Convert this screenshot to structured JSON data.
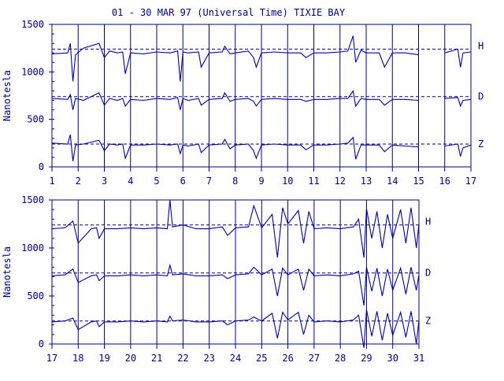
{
  "chart_data": [
    {
      "type": "line",
      "title": "01 - 30 MAR 97 (Universal Time) TIXIE BAY",
      "ylabel": "Nanotesla",
      "xlim": [
        1,
        17
      ],
      "ylim": [
        0,
        1500
      ],
      "ytick_labels": [
        "0",
        "500",
        "1000",
        "1500"
      ],
      "xtick_labels": [
        "1",
        "2",
        "3",
        "4",
        "5",
        "6",
        "7",
        "8",
        "9",
        "10",
        "11",
        "12",
        "13",
        "14",
        "15",
        "16",
        "17"
      ],
      "gap": [
        15,
        16
      ],
      "series": [
        {
          "name": "H",
          "baseline": 1240,
          "level": 1200,
          "x": [
            1.0,
            1.6,
            1.7,
            1.8,
            1.9,
            2.2,
            2.8,
            3.0,
            3.2,
            3.5,
            3.7,
            3.8,
            4.0,
            4.5,
            5.0,
            5.5,
            5.8,
            5.9,
            6.0,
            6.2,
            6.6,
            6.7,
            7.0,
            7.5,
            7.6,
            7.8,
            8.0,
            8.5,
            8.7,
            8.8,
            9.0,
            9.5,
            10.0,
            10.5,
            10.7,
            11.0,
            11.5,
            12.0,
            12.3,
            12.5,
            12.6,
            12.8,
            13.0,
            13.5,
            13.7,
            14.0,
            14.5,
            15.0,
            16.0,
            16.5,
            16.6,
            16.7,
            17.0
          ],
          "y": [
            1190,
            1200,
            1300,
            900,
            1180,
            1250,
            1300,
            1150,
            1220,
            1200,
            1210,
            980,
            1200,
            1190,
            1210,
            1200,
            1220,
            900,
            1210,
            1200,
            1210,
            1050,
            1200,
            1210,
            1270,
            1190,
            1200,
            1220,
            1150,
            1050,
            1200,
            1210,
            1200,
            1200,
            1150,
            1200,
            1200,
            1210,
            1220,
            1380,
            1100,
            1230,
            1200,
            1200,
            1050,
            1200,
            1200,
            1180,
            1200,
            1240,
            1050,
            1200,
            1210
          ]
        },
        {
          "name": "D",
          "baseline": 740,
          "level": 710,
          "x": [
            1.0,
            1.6,
            1.7,
            1.8,
            1.9,
            2.2,
            2.8,
            3.0,
            3.2,
            3.5,
            3.7,
            3.8,
            4.0,
            4.5,
            5.0,
            5.5,
            5.8,
            5.9,
            6.0,
            6.2,
            6.6,
            6.7,
            7.0,
            7.5,
            7.6,
            7.8,
            8.0,
            8.5,
            8.7,
            8.8,
            9.0,
            9.5,
            10.0,
            10.5,
            10.7,
            11.0,
            11.5,
            12.0,
            12.3,
            12.5,
            12.6,
            12.8,
            13.0,
            13.5,
            13.7,
            14.0,
            14.5,
            15.0,
            16.0,
            16.5,
            16.6,
            16.7,
            17.0
          ],
          "y": [
            720,
            710,
            760,
            600,
            720,
            700,
            780,
            650,
            720,
            700,
            720,
            640,
            710,
            700,
            720,
            710,
            730,
            600,
            720,
            700,
            720,
            650,
            710,
            720,
            780,
            690,
            710,
            720,
            690,
            640,
            710,
            720,
            710,
            710,
            690,
            710,
            710,
            720,
            720,
            800,
            640,
            720,
            710,
            710,
            650,
            710,
            710,
            700,
            720,
            730,
            640,
            700,
            710
          ]
        },
        {
          "name": "Z",
          "baseline": 240,
          "level": 230,
          "x": [
            1.0,
            1.6,
            1.7,
            1.8,
            1.9,
            2.2,
            2.8,
            3.0,
            3.2,
            3.5,
            3.7,
            3.8,
            4.0,
            4.5,
            5.0,
            5.5,
            5.8,
            5.9,
            6.0,
            6.2,
            6.6,
            6.7,
            7.0,
            7.5,
            7.6,
            7.8,
            8.0,
            8.5,
            8.7,
            8.8,
            9.0,
            9.5,
            10.0,
            10.5,
            10.7,
            11.0,
            11.5,
            12.0,
            12.3,
            12.5,
            12.6,
            12.8,
            13.0,
            13.5,
            13.7,
            14.0,
            14.5,
            15.0,
            16.0,
            16.5,
            16.6,
            16.7,
            17.0
          ],
          "y": [
            250,
            240,
            340,
            60,
            230,
            240,
            280,
            170,
            240,
            230,
            240,
            90,
            230,
            230,
            240,
            230,
            240,
            140,
            230,
            220,
            240,
            150,
            230,
            240,
            290,
            190,
            230,
            240,
            170,
            90,
            230,
            240,
            230,
            230,
            180,
            230,
            230,
            240,
            250,
            310,
            80,
            230,
            230,
            230,
            160,
            230,
            220,
            210,
            220,
            240,
            110,
            200,
            230
          ]
        }
      ],
      "channel_labels": [
        "H",
        "D",
        "Z"
      ]
    },
    {
      "type": "line",
      "ylabel": "Nanotesla",
      "xlim": [
        17,
        31
      ],
      "ylim": [
        0,
        1500
      ],
      "ytick_labels": [
        "0",
        "500",
        "1000",
        "1500"
      ],
      "xtick_labels": [
        "17",
        "18",
        "19",
        "20",
        "21",
        "22",
        "23",
        "24",
        "25",
        "26",
        "27",
        "28",
        "29",
        "30",
        "31"
      ],
      "series": [
        {
          "name": "H",
          "baseline": 1240,
          "level": 1200,
          "x": [
            17.0,
            17.5,
            17.8,
            18.0,
            18.5,
            18.7,
            18.8,
            19.0,
            19.5,
            20.0,
            20.5,
            21.0,
            21.4,
            21.5,
            21.6,
            22.0,
            22.5,
            23.0,
            23.5,
            23.7,
            24.0,
            24.5,
            24.7,
            25.0,
            25.4,
            25.6,
            25.8,
            26.0,
            26.4,
            26.6,
            26.8,
            27.0,
            27.5,
            28.0,
            28.5,
            28.7,
            28.9,
            29.0,
            29.2,
            29.4,
            29.6,
            29.8,
            30.0,
            30.3,
            30.5,
            30.7,
            30.9,
            31.0
          ],
          "y": [
            1200,
            1210,
            1280,
            1050,
            1200,
            1210,
            1100,
            1200,
            1200,
            1210,
            1200,
            1210,
            1200,
            1500,
            1220,
            1240,
            1200,
            1200,
            1220,
            1130,
            1210,
            1220,
            1440,
            1210,
            1350,
            900,
            1420,
            1250,
            1390,
            1050,
            1380,
            1200,
            1210,
            1200,
            1220,
            1300,
            900,
            1410,
            1100,
            1380,
            1000,
            1350,
            1100,
            1400,
            1050,
            1420,
            1000,
            1250
          ]
        },
        {
          "name": "D",
          "baseline": 740,
          "level": 710,
          "x": [
            17.0,
            17.5,
            17.8,
            18.0,
            18.5,
            18.7,
            18.8,
            19.0,
            19.5,
            20.0,
            20.5,
            21.0,
            21.4,
            21.5,
            21.6,
            22.0,
            22.5,
            23.0,
            23.5,
            23.7,
            24.0,
            24.5,
            24.7,
            25.0,
            25.4,
            25.6,
            25.8,
            26.0,
            26.4,
            26.6,
            26.8,
            27.0,
            27.5,
            28.0,
            28.5,
            28.7,
            28.9,
            29.0,
            29.2,
            29.4,
            29.6,
            29.8,
            30.0,
            30.3,
            30.5,
            30.7,
            30.9,
            31.0
          ],
          "y": [
            710,
            720,
            780,
            640,
            710,
            720,
            660,
            710,
            710,
            720,
            710,
            720,
            710,
            820,
            720,
            730,
            710,
            710,
            720,
            680,
            720,
            730,
            800,
            720,
            780,
            500,
            790,
            720,
            780,
            560,
            780,
            710,
            720,
            710,
            730,
            760,
            400,
            800,
            550,
            790,
            500,
            780,
            560,
            790,
            520,
            800,
            560,
            720
          ]
        },
        {
          "name": "Z",
          "baseline": 240,
          "level": 230,
          "x": [
            17.0,
            17.5,
            17.8,
            18.0,
            18.5,
            18.7,
            18.8,
            19.0,
            19.5,
            20.0,
            20.5,
            21.0,
            21.4,
            21.5,
            21.6,
            22.0,
            22.5,
            23.0,
            23.5,
            23.7,
            24.0,
            24.5,
            24.7,
            25.0,
            25.4,
            25.6,
            25.8,
            26.0,
            26.4,
            26.6,
            26.8,
            27.0,
            27.5,
            28.0,
            28.5,
            28.7,
            28.9,
            29.0,
            29.2,
            29.4,
            29.6,
            29.8,
            30.0,
            30.3,
            30.5,
            30.7,
            30.9,
            31.0
          ],
          "y": [
            230,
            240,
            270,
            150,
            230,
            240,
            180,
            230,
            230,
            240,
            230,
            240,
            230,
            290,
            240,
            250,
            230,
            230,
            240,
            200,
            240,
            250,
            280,
            240,
            320,
            60,
            330,
            250,
            330,
            100,
            300,
            230,
            240,
            230,
            250,
            300,
            -40,
            360,
            80,
            340,
            40,
            320,
            90,
            330,
            70,
            340,
            0,
            250
          ]
        }
      ],
      "channel_labels": [
        "H",
        "D",
        "Z"
      ]
    }
  ]
}
